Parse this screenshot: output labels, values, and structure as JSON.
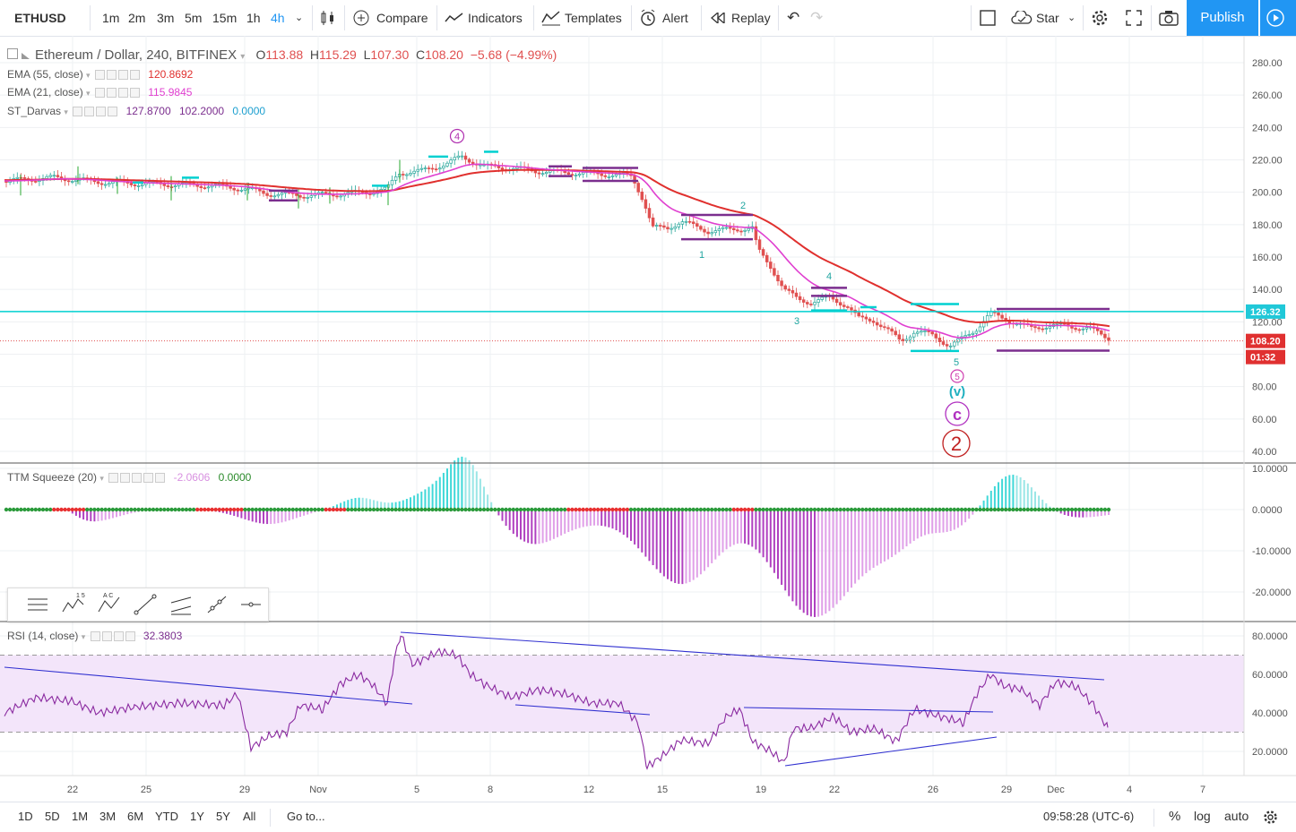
{
  "symbol": "ETHUSD",
  "intervals": [
    "1m",
    "2m",
    "3m",
    "5m",
    "15m",
    "1h",
    "4h"
  ],
  "active_interval": "4h",
  "toolbar": {
    "compare": "Compare",
    "indicators": "Indicators",
    "templates": "Templates",
    "alert": "Alert",
    "replay": "Replay",
    "star": "Star",
    "publish": "Publish"
  },
  "main_legend": {
    "title": "Ethereum / Dollar, 240, BITFINEX",
    "o_label": "O",
    "o": "113.88",
    "h_label": "H",
    "h": "115.29",
    "l_label": "L",
    "l": "107.30",
    "c_label": "C",
    "c": "108.20",
    "change": "−5.68 (−4.99%)"
  },
  "studies": {
    "ema55": {
      "name": "EMA (55, close)",
      "value": "120.8692",
      "color": "#e0302e"
    },
    "ema21": {
      "name": "EMA (21, close)",
      "value": "115.9845",
      "color": "#e040d0"
    },
    "darvas": {
      "name": "ST_Darvas",
      "v1": "127.8700",
      "v2": "102.2000",
      "v3": "0.0000"
    },
    "ttm": {
      "name": "TTM Squeeze (20)",
      "v1": "-2.0606",
      "v2": "0.0000"
    },
    "rsi": {
      "name": "RSI (14, close)",
      "value": "32.3803"
    }
  },
  "price_axis": [
    "280.00",
    "260.00",
    "240.00",
    "220.00",
    "200.00",
    "180.00",
    "160.00",
    "140.00",
    "120.00",
    "100.00",
    "80.00",
    "60.00",
    "40.00"
  ],
  "price_tags": {
    "level": "126.32",
    "last": "108.20",
    "countdown": "01:32"
  },
  "ttm_axis": [
    "10.0000",
    "0.0000",
    "-10.0000",
    "-20.0000"
  ],
  "rsi_axis": [
    "80.0000",
    "60.0000",
    "40.0000",
    "20.0000"
  ],
  "time_axis": [
    "22",
    "25",
    "29",
    "Nov",
    "5",
    "8",
    "12",
    "15",
    "19",
    "22",
    "26",
    "29",
    "Dec",
    "4",
    "7"
  ],
  "wave_labels": {
    "w4": "4",
    "w5": "5",
    "wv": "(v)",
    "wc": "c",
    "w2": "2",
    "n1": "1",
    "n2": "2",
    "n3": "3",
    "n4": "4",
    "n5": "5"
  },
  "ranges": [
    "1D",
    "5D",
    "1M",
    "3M",
    "6M",
    "YTD",
    "1Y",
    "5Y",
    "All"
  ],
  "goto": "Go to...",
  "clock": "09:58:28 (UTC-6)",
  "scale_opts": {
    "pct": "%",
    "log": "log",
    "auto": "auto"
  },
  "colors": {
    "accent": "#2196f3",
    "cyan": "#00d0d0",
    "ema55": "#e0302e",
    "ema21": "#e040d0",
    "purple": "#7b2e8e",
    "up": "#26a69a",
    "down": "#e05050"
  }
}
